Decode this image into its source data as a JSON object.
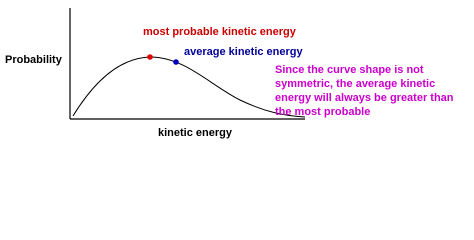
{
  "diagram": {
    "y_axis_label": "Probability",
    "x_axis_label": "kinetic energy",
    "most_probable_label": "most probable kinetic energy",
    "average_label": "average kinetic energy",
    "note_lines": [
      "Since the curve shape is not",
      "symmetric, the average kinetic",
      "energy will always be greater than",
      "the most probable"
    ]
  }
}
